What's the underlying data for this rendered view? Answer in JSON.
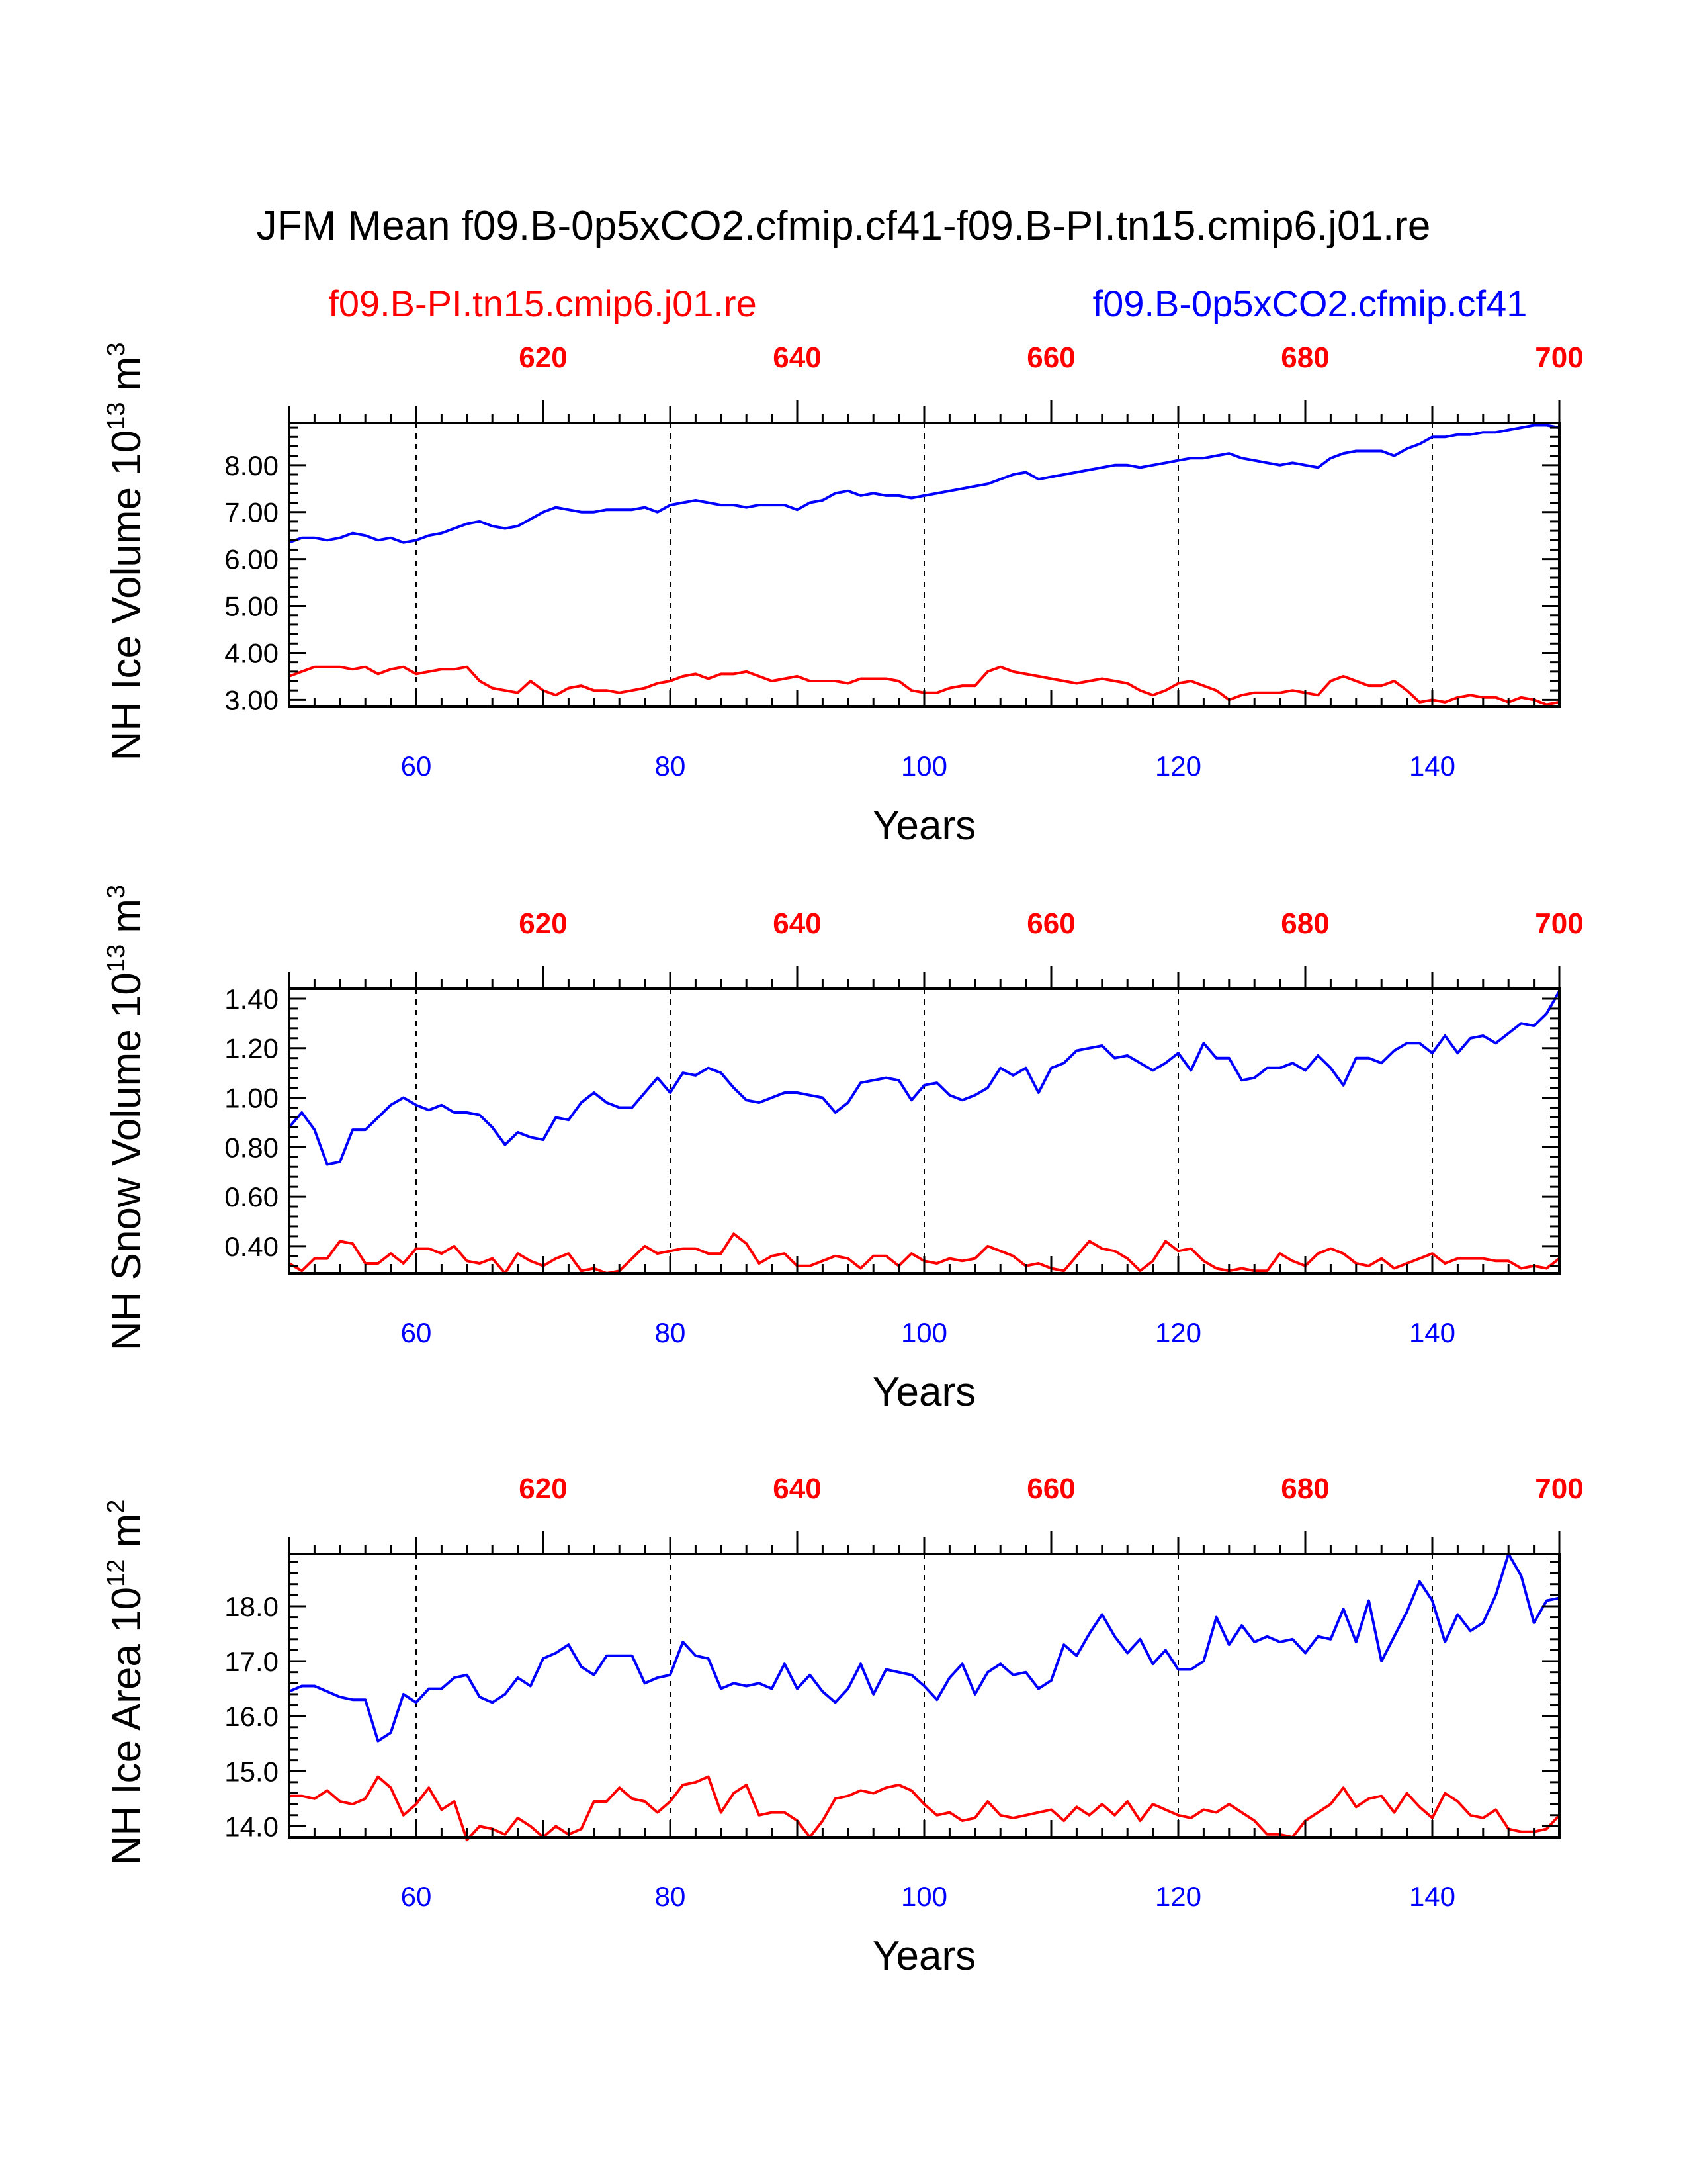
{
  "title": "JFM Mean f09.B-0p5xCO2.cfmip.cf41-f09.B-PI.tn15.cmip6.j01.re",
  "legend": {
    "red_label": "f09.B-PI.tn15.cmip6.j01.re",
    "blue_label": "f09.B-0p5xCO2.cfmip.cf41"
  },
  "colors": {
    "red": "#ff0000",
    "blue": "#0000ff",
    "axis": "#000000"
  },
  "chart_data": [
    {
      "type": "line",
      "ylabel": {
        "text": "NH Ice Volume 10",
        "exp": "13",
        "unit": " m",
        "unit_exp": "3"
      },
      "xlabel": "Years",
      "xlim": [
        50,
        150
      ],
      "ylim": [
        2.85,
        8.9
      ],
      "x_ticks": [
        "60",
        "80",
        "100",
        "120",
        "140"
      ],
      "x_tick_values": [
        60,
        80,
        100,
        120,
        140
      ],
      "top_ticks": [
        "620",
        "640",
        "660",
        "680",
        "700"
      ],
      "top_tick_values": [
        620,
        640,
        660,
        680,
        700
      ],
      "top_offset": 550,
      "y_ticks": [
        "3.00",
        "4.00",
        "5.00",
        "6.00",
        "7.00",
        "8.00"
      ],
      "y_tick_values": [
        3,
        4,
        5,
        6,
        7,
        8
      ],
      "y_minor": 0.2,
      "vgrid": [
        60,
        80,
        100,
        120,
        140
      ],
      "series": [
        {
          "name": "f09.B-0p5xCO2.cfmip.cf41",
          "color": "blue",
          "x_start": 50,
          "values": [
            6.35,
            6.45,
            6.45,
            6.4,
            6.45,
            6.55,
            6.5,
            6.4,
            6.45,
            6.35,
            6.4,
            6.5,
            6.55,
            6.65,
            6.75,
            6.8,
            6.7,
            6.65,
            6.7,
            6.85,
            7.0,
            7.1,
            7.05,
            7.0,
            7.0,
            7.05,
            7.05,
            7.05,
            7.1,
            7.0,
            7.15,
            7.2,
            7.25,
            7.2,
            7.15,
            7.15,
            7.1,
            7.15,
            7.15,
            7.15,
            7.05,
            7.2,
            7.25,
            7.4,
            7.45,
            7.35,
            7.4,
            7.35,
            7.35,
            7.3,
            7.35,
            7.4,
            7.45,
            7.5,
            7.55,
            7.6,
            7.7,
            7.8,
            7.85,
            7.7,
            7.75,
            7.8,
            7.85,
            7.9,
            7.95,
            8.0,
            8.0,
            7.95,
            8.0,
            8.05,
            8.1,
            8.15,
            8.15,
            8.2,
            8.25,
            8.15,
            8.1,
            8.05,
            8.0,
            8.05,
            8.0,
            7.95,
            8.15,
            8.25,
            8.3,
            8.3,
            8.3,
            8.2,
            8.35,
            8.45,
            8.6,
            8.6,
            8.65,
            8.65,
            8.7,
            8.7,
            8.75,
            8.8,
            8.85,
            8.85,
            8.8
          ]
        },
        {
          "name": "f09.B-PI.tn15.cmip6.j01.re",
          "color": "red",
          "x_start": 50,
          "values": [
            3.5,
            3.6,
            3.7,
            3.7,
            3.7,
            3.65,
            3.7,
            3.55,
            3.65,
            3.7,
            3.55,
            3.6,
            3.65,
            3.65,
            3.7,
            3.4,
            3.25,
            3.2,
            3.15,
            3.4,
            3.2,
            3.1,
            3.25,
            3.3,
            3.2,
            3.2,
            3.15,
            3.2,
            3.25,
            3.35,
            3.4,
            3.5,
            3.55,
            3.45,
            3.55,
            3.55,
            3.6,
            3.5,
            3.4,
            3.45,
            3.5,
            3.4,
            3.4,
            3.4,
            3.35,
            3.45,
            3.45,
            3.45,
            3.4,
            3.2,
            3.15,
            3.15,
            3.25,
            3.3,
            3.3,
            3.6,
            3.7,
            3.6,
            3.55,
            3.5,
            3.45,
            3.4,
            3.35,
            3.4,
            3.45,
            3.4,
            3.35,
            3.2,
            3.1,
            3.2,
            3.35,
            3.4,
            3.3,
            3.2,
            3.0,
            3.1,
            3.15,
            3.15,
            3.15,
            3.2,
            3.15,
            3.1,
            3.4,
            3.5,
            3.4,
            3.3,
            3.3,
            3.4,
            3.2,
            2.95,
            3.0,
            2.95,
            3.05,
            3.1,
            3.05,
            3.05,
            2.95,
            3.05,
            3.0,
            2.9,
            2.95
          ]
        }
      ]
    },
    {
      "type": "line",
      "ylabel": {
        "text": "NH Snow Volume 10",
        "exp": "13",
        "unit": " m",
        "unit_exp": "3"
      },
      "xlabel": "Years",
      "xlim": [
        50,
        150
      ],
      "ylim": [
        0.29,
        1.44
      ],
      "x_ticks": [
        "60",
        "80",
        "100",
        "120",
        "140"
      ],
      "x_tick_values": [
        60,
        80,
        100,
        120,
        140
      ],
      "top_ticks": [
        "620",
        "640",
        "660",
        "680",
        "700"
      ],
      "top_tick_values": [
        620,
        640,
        660,
        680,
        700
      ],
      "top_offset": 550,
      "y_ticks": [
        "0.40",
        "0.60",
        "0.80",
        "1.00",
        "1.20",
        "1.40"
      ],
      "y_tick_values": [
        0.4,
        0.6,
        0.8,
        1.0,
        1.2,
        1.4
      ],
      "y_minor": 0.04,
      "vgrid": [
        60,
        80,
        100,
        120,
        140
      ],
      "series": [
        {
          "name": "f09.B-0p5xCO2.cfmip.cf41",
          "color": "blue",
          "x_start": 50,
          "values": [
            0.88,
            0.94,
            0.87,
            0.73,
            0.74,
            0.87,
            0.87,
            0.92,
            0.97,
            1.0,
            0.97,
            0.95,
            0.97,
            0.94,
            0.94,
            0.93,
            0.88,
            0.81,
            0.86,
            0.84,
            0.83,
            0.92,
            0.91,
            0.98,
            1.02,
            0.98,
            0.96,
            0.96,
            1.02,
            1.08,
            1.02,
            1.1,
            1.09,
            1.12,
            1.1,
            1.04,
            0.99,
            0.98,
            1.0,
            1.02,
            1.02,
            1.01,
            1.0,
            0.94,
            0.98,
            1.06,
            1.07,
            1.08,
            1.07,
            0.99,
            1.05,
            1.06,
            1.01,
            0.99,
            1.01,
            1.04,
            1.12,
            1.09,
            1.12,
            1.02,
            1.12,
            1.14,
            1.19,
            1.2,
            1.21,
            1.16,
            1.17,
            1.14,
            1.11,
            1.14,
            1.18,
            1.11,
            1.22,
            1.16,
            1.16,
            1.07,
            1.08,
            1.12,
            1.12,
            1.14,
            1.11,
            1.17,
            1.12,
            1.05,
            1.16,
            1.16,
            1.14,
            1.19,
            1.22,
            1.22,
            1.18,
            1.25,
            1.18,
            1.24,
            1.25,
            1.22,
            1.26,
            1.3,
            1.29,
            1.34,
            1.43
          ]
        },
        {
          "name": "f09.B-PI.tn15.cmip6.j01.re",
          "color": "red",
          "x_start": 50,
          "values": [
            0.33,
            0.3,
            0.35,
            0.35,
            0.42,
            0.41,
            0.33,
            0.33,
            0.37,
            0.33,
            0.39,
            0.39,
            0.37,
            0.4,
            0.34,
            0.33,
            0.35,
            0.29,
            0.37,
            0.34,
            0.32,
            0.35,
            0.37,
            0.3,
            0.31,
            0.29,
            0.3,
            0.35,
            0.4,
            0.37,
            0.38,
            0.39,
            0.39,
            0.37,
            0.37,
            0.45,
            0.41,
            0.33,
            0.36,
            0.37,
            0.32,
            0.32,
            0.34,
            0.36,
            0.35,
            0.31,
            0.36,
            0.36,
            0.32,
            0.37,
            0.34,
            0.33,
            0.35,
            0.34,
            0.35,
            0.4,
            0.38,
            0.36,
            0.32,
            0.33,
            0.31,
            0.3,
            0.36,
            0.42,
            0.39,
            0.38,
            0.35,
            0.3,
            0.34,
            0.42,
            0.38,
            0.39,
            0.34,
            0.31,
            0.3,
            0.31,
            0.3,
            0.3,
            0.37,
            0.34,
            0.32,
            0.37,
            0.39,
            0.37,
            0.33,
            0.32,
            0.35,
            0.31,
            0.33,
            0.35,
            0.37,
            0.33,
            0.35,
            0.35,
            0.35,
            0.34,
            0.34,
            0.31,
            0.32,
            0.31,
            0.35
          ]
        }
      ]
    },
    {
      "type": "line",
      "ylabel": {
        "text": "NH Ice Area 10",
        "exp": "12",
        "unit": " m",
        "unit_exp": "2"
      },
      "xlabel": "Years",
      "xlim": [
        50,
        150
      ],
      "ylim": [
        13.8,
        18.95
      ],
      "x_ticks": [
        "60",
        "80",
        "100",
        "120",
        "140"
      ],
      "x_tick_values": [
        60,
        80,
        100,
        120,
        140
      ],
      "top_ticks": [
        "620",
        "640",
        "660",
        "680",
        "700"
      ],
      "top_tick_values": [
        620,
        640,
        660,
        680,
        700
      ],
      "top_offset": 550,
      "y_ticks": [
        "14.0",
        "15.0",
        "16.0",
        "17.0",
        "18.0"
      ],
      "y_tick_values": [
        14,
        15,
        16,
        17,
        18
      ],
      "y_minor": 0.2,
      "vgrid": [
        60,
        80,
        100,
        120,
        140
      ],
      "series": [
        {
          "name": "f09.B-0p5xCO2.cfmip.cf41",
          "color": "blue",
          "x_start": 50,
          "values": [
            16.45,
            16.55,
            16.55,
            16.45,
            16.35,
            16.3,
            16.3,
            15.55,
            15.7,
            16.4,
            16.25,
            16.5,
            16.5,
            16.7,
            16.75,
            16.35,
            16.25,
            16.4,
            16.7,
            16.55,
            17.05,
            17.15,
            17.3,
            16.9,
            16.75,
            17.1,
            17.1,
            17.1,
            16.6,
            16.7,
            16.75,
            17.35,
            17.1,
            17.05,
            16.5,
            16.6,
            16.55,
            16.6,
            16.5,
            16.95,
            16.5,
            16.75,
            16.45,
            16.25,
            16.5,
            16.95,
            16.4,
            16.85,
            16.8,
            16.75,
            16.55,
            16.3,
            16.7,
            16.95,
            16.4,
            16.8,
            16.95,
            16.75,
            16.8,
            16.5,
            16.65,
            17.3,
            17.1,
            17.5,
            17.85,
            17.45,
            17.15,
            17.4,
            16.95,
            17.2,
            16.85,
            16.85,
            17.0,
            17.8,
            17.3,
            17.65,
            17.35,
            17.45,
            17.35,
            17.4,
            17.15,
            17.45,
            17.4,
            17.95,
            17.35,
            18.1,
            17.0,
            17.45,
            17.9,
            18.45,
            18.1,
            17.35,
            17.85,
            17.55,
            17.7,
            18.2,
            18.95,
            18.55,
            17.7,
            18.1,
            18.15
          ]
        },
        {
          "name": "f09.B-PI.tn15.cmip6.j01.re",
          "color": "red",
          "x_start": 50,
          "values": [
            14.55,
            14.55,
            14.5,
            14.65,
            14.45,
            14.4,
            14.5,
            14.9,
            14.7,
            14.2,
            14.4,
            14.7,
            14.3,
            14.45,
            13.75,
            14.0,
            13.95,
            13.85,
            14.15,
            14.0,
            13.8,
            14.0,
            13.85,
            13.95,
            14.45,
            14.45,
            14.7,
            14.5,
            14.45,
            14.25,
            14.45,
            14.75,
            14.8,
            14.9,
            14.25,
            14.6,
            14.75,
            14.2,
            14.25,
            14.25,
            14.1,
            13.8,
            14.1,
            14.5,
            14.55,
            14.65,
            14.6,
            14.7,
            14.75,
            14.65,
            14.4,
            14.2,
            14.25,
            14.1,
            14.15,
            14.45,
            14.2,
            14.15,
            14.2,
            14.25,
            14.3,
            14.1,
            14.35,
            14.2,
            14.4,
            14.2,
            14.45,
            14.1,
            14.4,
            14.3,
            14.2,
            14.15,
            14.3,
            14.25,
            14.4,
            14.25,
            14.1,
            13.85,
            13.85,
            13.8,
            14.1,
            14.25,
            14.4,
            14.7,
            14.35,
            14.5,
            14.55,
            14.25,
            14.6,
            14.35,
            14.15,
            14.6,
            14.45,
            14.2,
            14.15,
            14.3,
            13.95,
            13.9,
            13.9,
            13.95,
            14.2
          ]
        }
      ]
    }
  ]
}
